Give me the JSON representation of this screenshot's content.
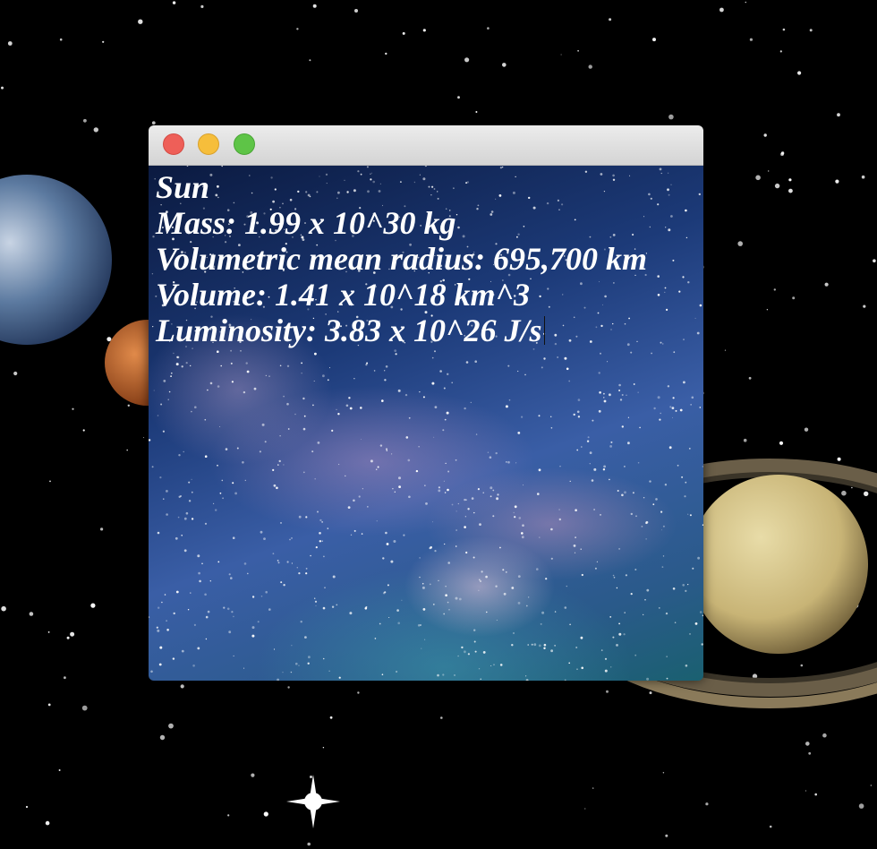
{
  "window": {
    "lines": [
      "Sun",
      "Mass: 1.99 x 10^30 kg",
      "Volumetric mean radius: 695,700 km",
      "Volume: 1.41 x 10^18 km^3",
      "Luminosity: 3.83 x 10^26 J/s"
    ]
  }
}
